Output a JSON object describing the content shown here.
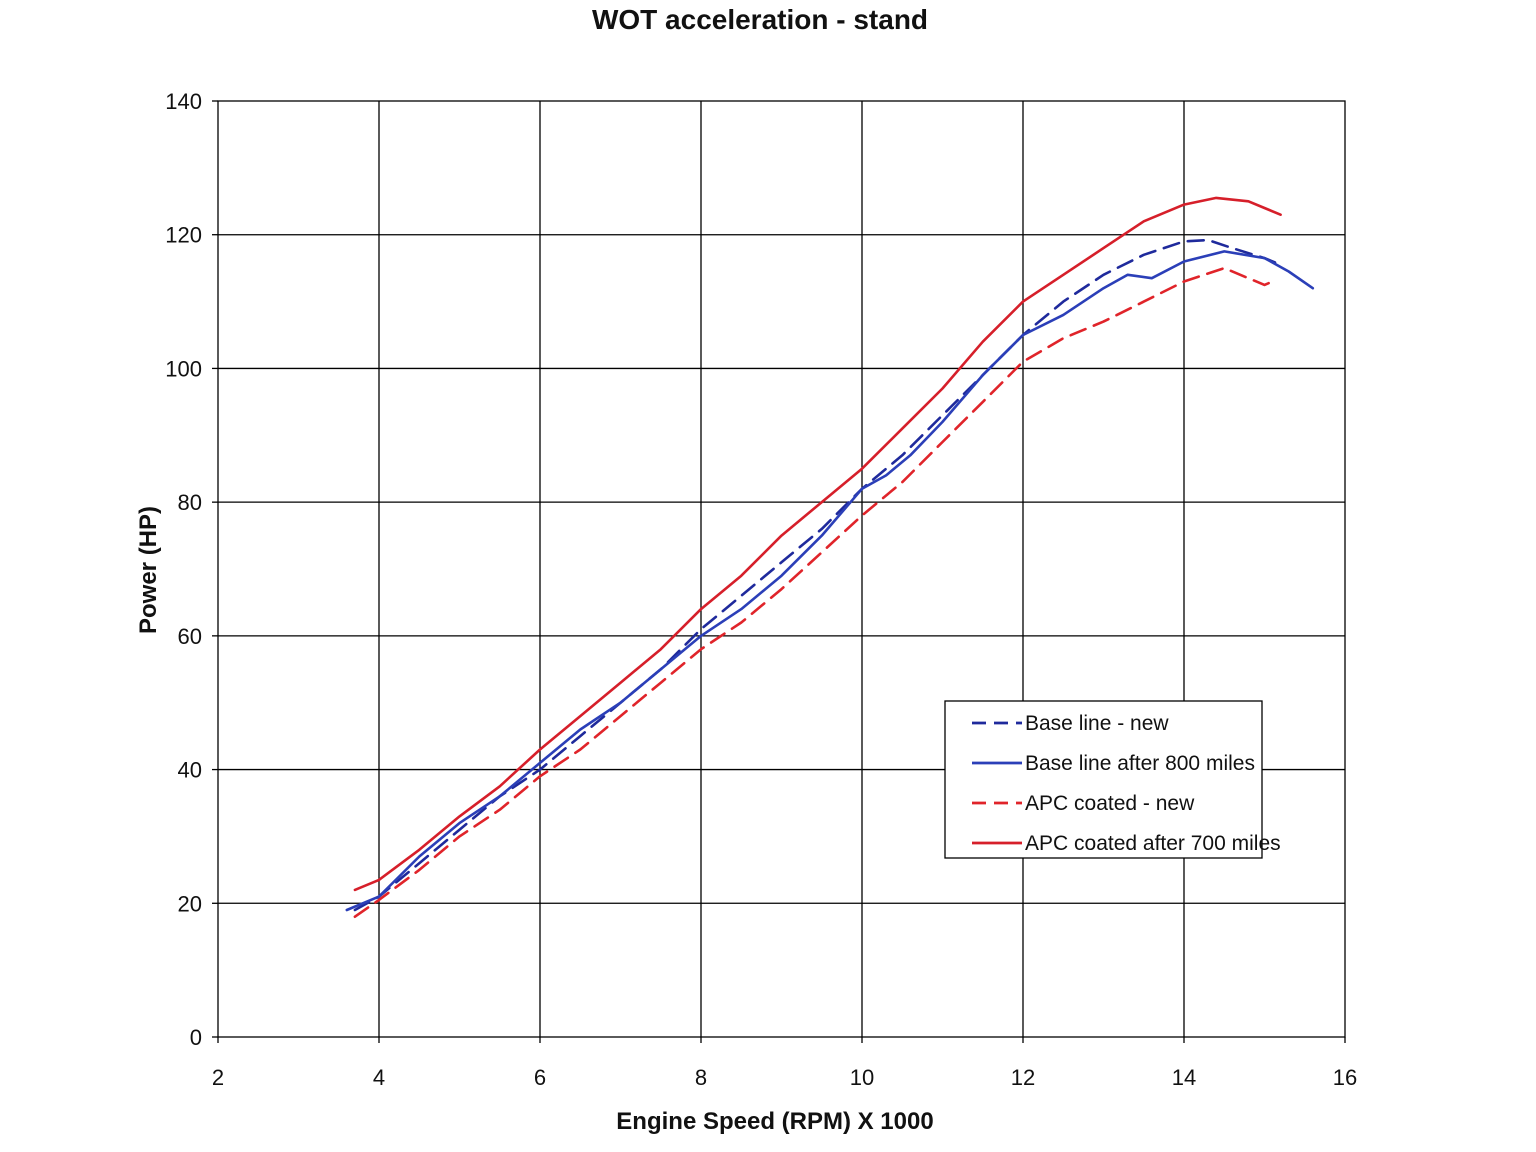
{
  "chart_data": {
    "type": "line",
    "title": "WOT acceleration - stand",
    "xlabel": "Engine Speed (RPM) X 1000",
    "ylabel": "Power (HP)",
    "xlim": [
      2,
      16
    ],
    "ylim": [
      0,
      140
    ],
    "x_ticks": [
      2,
      4,
      6,
      8,
      10,
      12,
      14,
      16
    ],
    "y_ticks": [
      0,
      20,
      40,
      60,
      80,
      100,
      120,
      140
    ],
    "grid": true,
    "legend_position": "right-middle",
    "series": [
      {
        "name": "Base line - new",
        "color": "#1f2a9c",
        "dash": "dashed",
        "points": [
          [
            3.7,
            19
          ],
          [
            4.0,
            21
          ],
          [
            4.5,
            26
          ],
          [
            5.0,
            31
          ],
          [
            5.5,
            36
          ],
          [
            6.0,
            40
          ],
          [
            6.5,
            45
          ],
          [
            7.0,
            50
          ],
          [
            7.5,
            55
          ],
          [
            8.0,
            61
          ],
          [
            8.5,
            66
          ],
          [
            9.0,
            71
          ],
          [
            9.5,
            76
          ],
          [
            10.0,
            82
          ],
          [
            10.5,
            87
          ],
          [
            11.0,
            93
          ],
          [
            11.5,
            99
          ],
          [
            12.0,
            105
          ],
          [
            12.5,
            110
          ],
          [
            13.0,
            114
          ],
          [
            13.5,
            117
          ],
          [
            14.0,
            119
          ],
          [
            14.3,
            119.2
          ],
          [
            14.6,
            118
          ],
          [
            15.0,
            116.5
          ],
          [
            15.2,
            115.5
          ]
        ]
      },
      {
        "name": "Base line after 800 miles",
        "color": "#2b3fb8",
        "dash": "solid",
        "points": [
          [
            3.6,
            19
          ],
          [
            4.0,
            21
          ],
          [
            4.5,
            27
          ],
          [
            5.0,
            32
          ],
          [
            5.5,
            36
          ],
          [
            6.0,
            41
          ],
          [
            6.5,
            46
          ],
          [
            7.0,
            50
          ],
          [
            7.5,
            55
          ],
          [
            8.0,
            60
          ],
          [
            8.5,
            64
          ],
          [
            9.0,
            69
          ],
          [
            9.5,
            75
          ],
          [
            10.0,
            82
          ],
          [
            10.3,
            84
          ],
          [
            10.6,
            87
          ],
          [
            11.0,
            92
          ],
          [
            11.5,
            99
          ],
          [
            12.0,
            105
          ],
          [
            12.5,
            108
          ],
          [
            13.0,
            112
          ],
          [
            13.3,
            114
          ],
          [
            13.6,
            113.5
          ],
          [
            14.0,
            116
          ],
          [
            14.5,
            117.5
          ],
          [
            15.0,
            116.5
          ],
          [
            15.3,
            114.5
          ],
          [
            15.6,
            112
          ]
        ]
      },
      {
        "name": "APC coated - new",
        "color": "#e0242a",
        "dash": "dashed",
        "points": [
          [
            3.7,
            18
          ],
          [
            4.0,
            20.5
          ],
          [
            4.5,
            25
          ],
          [
            5.0,
            30
          ],
          [
            5.5,
            34
          ],
          [
            6.0,
            39
          ],
          [
            6.5,
            43
          ],
          [
            7.0,
            48
          ],
          [
            7.5,
            53
          ],
          [
            8.0,
            58
          ],
          [
            8.5,
            62
          ],
          [
            9.0,
            67
          ],
          [
            9.5,
            72.5
          ],
          [
            10.0,
            78
          ],
          [
            10.5,
            83
          ],
          [
            11.0,
            89
          ],
          [
            11.5,
            95
          ],
          [
            12.0,
            101
          ],
          [
            12.5,
            104.5
          ],
          [
            13.0,
            107
          ],
          [
            13.5,
            110
          ],
          [
            14.0,
            113
          ],
          [
            14.5,
            115
          ],
          [
            14.8,
            113.5
          ],
          [
            15.0,
            112.5
          ],
          [
            15.1,
            113
          ]
        ]
      },
      {
        "name": "APC coated after 700 miles",
        "color": "#d61f2a",
        "dash": "solid",
        "points": [
          [
            3.7,
            22
          ],
          [
            4.0,
            23.5
          ],
          [
            4.5,
            28
          ],
          [
            5.0,
            33
          ],
          [
            5.5,
            37.5
          ],
          [
            6.0,
            43
          ],
          [
            6.5,
            48
          ],
          [
            7.0,
            53
          ],
          [
            7.5,
            58
          ],
          [
            8.0,
            64
          ],
          [
            8.5,
            69
          ],
          [
            9.0,
            75
          ],
          [
            9.5,
            80
          ],
          [
            10.0,
            85
          ],
          [
            10.5,
            91
          ],
          [
            11.0,
            97
          ],
          [
            11.5,
            104
          ],
          [
            12.0,
            110
          ],
          [
            12.5,
            114
          ],
          [
            13.0,
            118
          ],
          [
            13.5,
            122
          ],
          [
            14.0,
            124.5
          ],
          [
            14.4,
            125.5
          ],
          [
            14.8,
            125
          ],
          [
            15.0,
            124
          ],
          [
            15.2,
            123
          ]
        ]
      }
    ]
  }
}
